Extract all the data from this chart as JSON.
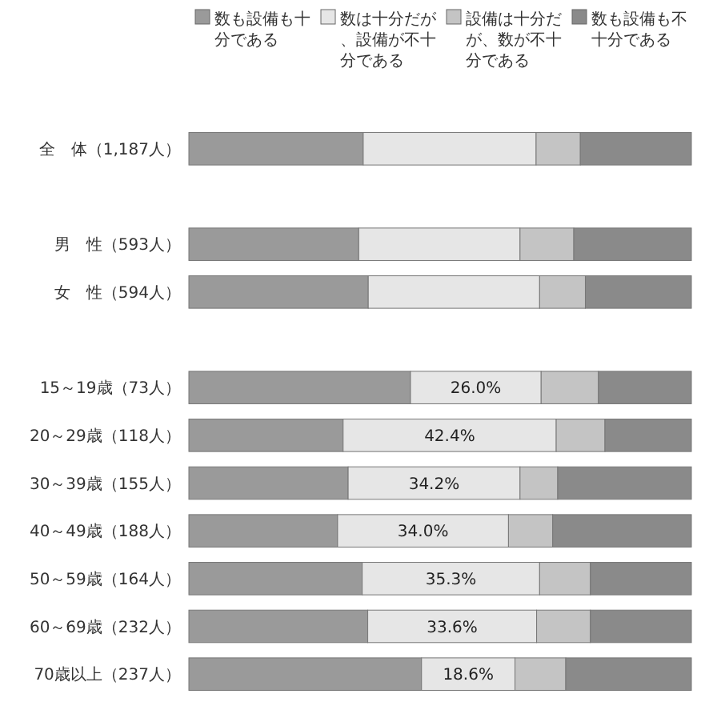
{
  "chart_data": {
    "type": "bar",
    "orientation": "horizontal",
    "stacked": true,
    "xlim": [
      0,
      100
    ],
    "legend": "top",
    "categories": [
      "全　体（1,187人）",
      null,
      "男　性（593人）",
      "女　性（594人）",
      null,
      "15～19歳（73人）",
      "20～29歳（118人）",
      "30～39歳（155人）",
      "40～49歳（188人）",
      "50～59歳（164人）",
      "60～69歳（232人）",
      "70歳以上（237人）"
    ],
    "series": [
      {
        "name": "数も設備も十分である",
        "color": "#9a9a9a",
        "values": [
          34.7,
          null,
          33.8,
          35.7,
          null,
          44.1,
          30.7,
          31.7,
          29.6,
          34.5,
          35.6,
          46.3
        ]
      },
      {
        "name": "数は十分だが、設備が不十分である",
        "color": "#e6e6e6",
        "values": [
          34.4,
          null,
          32.1,
          34.1,
          null,
          26.0,
          42.4,
          34.2,
          34.0,
          35.3,
          33.6,
          18.6
        ],
        "value_labels": [
          null,
          null,
          null,
          null,
          null,
          "26.0%",
          "42.4%",
          "34.2%",
          "34.0%",
          "35.3%",
          "33.6%",
          "18.6%"
        ]
      },
      {
        "name": "設備は十分だが、数が不十分である",
        "color": "#c4c4c4",
        "values": [
          8.8,
          null,
          10.7,
          9.1,
          null,
          11.4,
          9.7,
          7.5,
          8.8,
          10.1,
          10.7,
          10.1
        ]
      },
      {
        "name": "数も設備も不十分である",
        "color": "#8a8a8a",
        "values": [
          22.1,
          null,
          23.4,
          21.1,
          null,
          18.5,
          17.2,
          26.6,
          27.6,
          20.1,
          20.1,
          25.0
        ]
      }
    ]
  }
}
